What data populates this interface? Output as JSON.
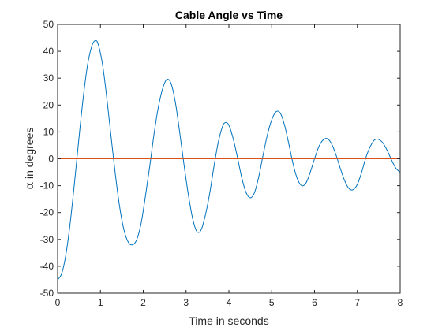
{
  "chart_data": {
    "type": "line",
    "title": "Cable Angle vs Time",
    "xlabel": "Time in seconds",
    "ylabel_symbol": "α",
    "ylabel_text": " in degrees",
    "xlim": [
      0,
      8
    ],
    "ylim": [
      -50,
      50
    ],
    "xticks": [
      0,
      1,
      2,
      3,
      4,
      5,
      6,
      7,
      8
    ],
    "yticks": [
      -50,
      -40,
      -30,
      -20,
      -10,
      0,
      10,
      20,
      30,
      40,
      50
    ],
    "grid": false,
    "box": true,
    "colors": {
      "series1": "#0072BD",
      "series2": "#D95319",
      "axis": "#262626"
    },
    "series": [
      {
        "points": [
          [
            0.0,
            -45.0
          ],
          [
            0.1,
            -42.5
          ],
          [
            0.2,
            -35.0
          ],
          [
            0.3,
            -23.0
          ],
          [
            0.4,
            -8.0
          ],
          [
            0.5,
            8.0
          ],
          [
            0.6,
            23.0
          ],
          [
            0.7,
            35.0
          ],
          [
            0.8,
            42.0
          ],
          [
            0.88,
            44.0
          ],
          [
            0.95,
            42.5
          ],
          [
            1.05,
            35.0
          ],
          [
            1.15,
            22.5
          ],
          [
            1.25,
            8.0
          ],
          [
            1.35,
            -6.0
          ],
          [
            1.45,
            -18.0
          ],
          [
            1.55,
            -26.5
          ],
          [
            1.65,
            -31.0
          ],
          [
            1.75,
            -32.0
          ],
          [
            1.85,
            -30.0
          ],
          [
            1.95,
            -24.0
          ],
          [
            2.05,
            -14.0
          ],
          [
            2.15,
            -3.0
          ],
          [
            2.25,
            9.0
          ],
          [
            2.35,
            19.0
          ],
          [
            2.45,
            26.0
          ],
          [
            2.55,
            29.5
          ],
          [
            2.65,
            28.0
          ],
          [
            2.75,
            21.0
          ],
          [
            2.85,
            10.0
          ],
          [
            2.95,
            -2.0
          ],
          [
            3.05,
            -13.0
          ],
          [
            3.15,
            -22.0
          ],
          [
            3.25,
            -27.0
          ],
          [
            3.35,
            -26.5
          ],
          [
            3.45,
            -21.0
          ],
          [
            3.55,
            -13.0
          ],
          [
            3.65,
            -3.0
          ],
          [
            3.75,
            6.0
          ],
          [
            3.85,
            12.0
          ],
          [
            3.92,
            13.5
          ],
          [
            4.0,
            12.5
          ],
          [
            4.1,
            7.5
          ],
          [
            4.2,
            0.5
          ],
          [
            4.3,
            -7.0
          ],
          [
            4.4,
            -12.5
          ],
          [
            4.5,
            -14.5
          ],
          [
            4.6,
            -12.5
          ],
          [
            4.7,
            -6.5
          ],
          [
            4.8,
            1.5
          ],
          [
            4.9,
            9.0
          ],
          [
            5.0,
            14.5
          ],
          [
            5.1,
            17.5
          ],
          [
            5.2,
            17.0
          ],
          [
            5.3,
            12.5
          ],
          [
            5.4,
            5.5
          ],
          [
            5.5,
            -2.0
          ],
          [
            5.6,
            -7.5
          ],
          [
            5.7,
            -10.0
          ],
          [
            5.8,
            -9.0
          ],
          [
            5.9,
            -5.0
          ],
          [
            6.0,
            0.0
          ],
          [
            6.1,
            4.5
          ],
          [
            6.2,
            7.0
          ],
          [
            6.3,
            7.5
          ],
          [
            6.4,
            5.5
          ],
          [
            6.5,
            1.5
          ],
          [
            6.6,
            -3.5
          ],
          [
            6.7,
            -8.0
          ],
          [
            6.8,
            -11.0
          ],
          [
            6.9,
            -11.5
          ],
          [
            7.0,
            -9.5
          ],
          [
            7.1,
            -5.0
          ],
          [
            7.2,
            0.5
          ],
          [
            7.3,
            4.5
          ],
          [
            7.4,
            7.0
          ],
          [
            7.5,
            7.2
          ],
          [
            7.6,
            5.8
          ],
          [
            7.7,
            3.0
          ],
          [
            7.8,
            -0.5
          ],
          [
            7.9,
            -3.5
          ],
          [
            8.0,
            -5.0
          ]
        ]
      },
      {
        "points": [
          [
            0.0,
            0.0
          ],
          [
            8.0,
            0.0
          ]
        ]
      }
    ]
  }
}
